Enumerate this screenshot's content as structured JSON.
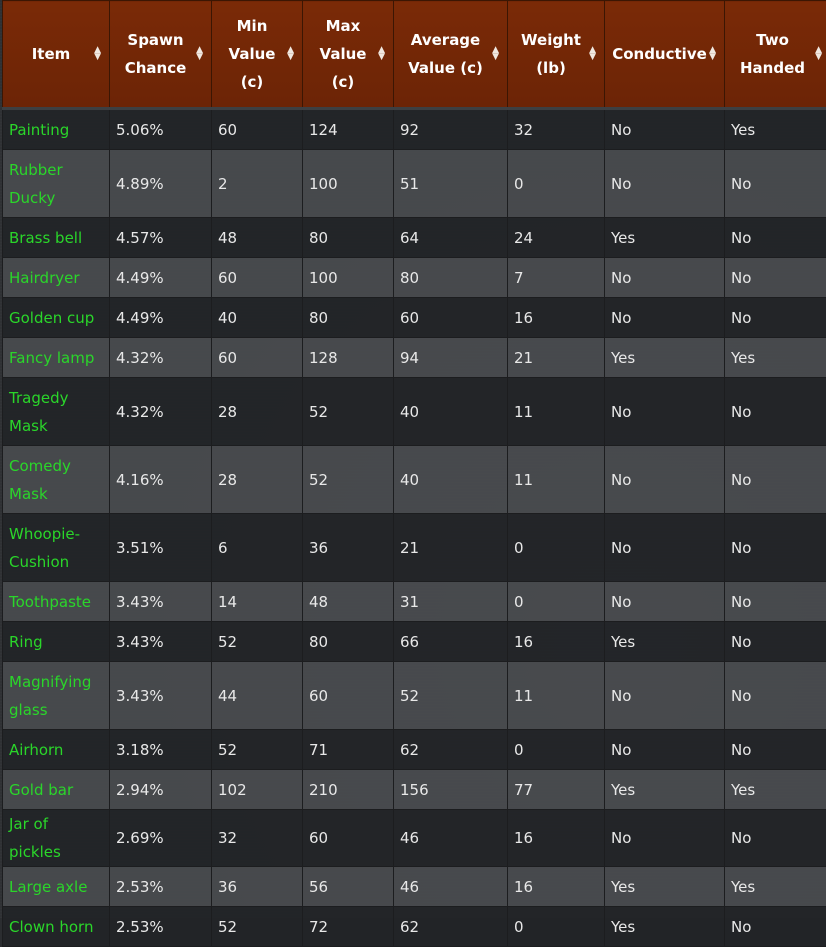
{
  "columns": [
    {
      "label": "Item"
    },
    {
      "label": "Spawn Chance"
    },
    {
      "label": "Min Value (c)"
    },
    {
      "label": "Max Value (c)"
    },
    {
      "label": "Average Value (c)"
    },
    {
      "label": "Weight (lb)"
    },
    {
      "label": "Conductive"
    },
    {
      "label": "Two Handed"
    }
  ],
  "rows": [
    {
      "item": "Painting",
      "spawn": "5.06%",
      "min": "60",
      "max": "124",
      "avg": "92",
      "weight": "32",
      "conductive": "No",
      "two_handed": "Yes"
    },
    {
      "item": "Rubber Ducky",
      "spawn": "4.89%",
      "min": "2",
      "max": "100",
      "avg": "51",
      "weight": "0",
      "conductive": "No",
      "two_handed": "No"
    },
    {
      "item": "Brass bell",
      "spawn": "4.57%",
      "min": "48",
      "max": "80",
      "avg": "64",
      "weight": "24",
      "conductive": "Yes",
      "two_handed": "No"
    },
    {
      "item": "Hairdryer",
      "spawn": "4.49%",
      "min": "60",
      "max": "100",
      "avg": "80",
      "weight": "7",
      "conductive": "No",
      "two_handed": "No"
    },
    {
      "item": "Golden cup",
      "spawn": "4.49%",
      "min": "40",
      "max": "80",
      "avg": "60",
      "weight": "16",
      "conductive": "No",
      "two_handed": "No"
    },
    {
      "item": "Fancy lamp",
      "spawn": "4.32%",
      "min": "60",
      "max": "128",
      "avg": "94",
      "weight": "21",
      "conductive": "Yes",
      "two_handed": "Yes"
    },
    {
      "item": "Tragedy Mask",
      "spawn": "4.32%",
      "min": "28",
      "max": "52",
      "avg": "40",
      "weight": "11",
      "conductive": "No",
      "two_handed": "No"
    },
    {
      "item": "Comedy Mask",
      "spawn": "4.16%",
      "min": "28",
      "max": "52",
      "avg": "40",
      "weight": "11",
      "conductive": "No",
      "two_handed": "No"
    },
    {
      "item": "Whoopie-Cushion",
      "spawn": "3.51%",
      "min": "6",
      "max": "36",
      "avg": "21",
      "weight": "0",
      "conductive": "No",
      "two_handed": "No"
    },
    {
      "item": "Toothpaste",
      "spawn": "3.43%",
      "min": "14",
      "max": "48",
      "avg": "31",
      "weight": "0",
      "conductive": "No",
      "two_handed": "No"
    },
    {
      "item": "Ring",
      "spawn": "3.43%",
      "min": "52",
      "max": "80",
      "avg": "66",
      "weight": "16",
      "conductive": "Yes",
      "two_handed": "No"
    },
    {
      "item": "Magnifying glass",
      "spawn": "3.43%",
      "min": "44",
      "max": "60",
      "avg": "52",
      "weight": "11",
      "conductive": "No",
      "two_handed": "No"
    },
    {
      "item": "Airhorn",
      "spawn": "3.18%",
      "min": "52",
      "max": "71",
      "avg": "62",
      "weight": "0",
      "conductive": "No",
      "two_handed": "No"
    },
    {
      "item": "Gold bar",
      "spawn": "2.94%",
      "min": "102",
      "max": "210",
      "avg": "156",
      "weight": "77",
      "conductive": "Yes",
      "two_handed": "Yes"
    },
    {
      "item": "Jar of pickles",
      "spawn": "2.69%",
      "min": "32",
      "max": "60",
      "avg": "46",
      "weight": "16",
      "conductive": "No",
      "two_handed": "No"
    },
    {
      "item": "Large axle",
      "spawn": "2.53%",
      "min": "36",
      "max": "56",
      "avg": "46",
      "weight": "16",
      "conductive": "Yes",
      "two_handed": "Yes"
    },
    {
      "item": "Clown horn",
      "spawn": "2.53%",
      "min": "52",
      "max": "72",
      "avg": "62",
      "weight": "0",
      "conductive": "Yes",
      "two_handed": "No"
    }
  ],
  "colors": {
    "header_bg": "#6c2406",
    "item_text": "#2ad62a",
    "row_dark": "#222427",
    "row_light": "#4a4c50"
  },
  "icons": {
    "sort": "sort-arrows-icon"
  }
}
